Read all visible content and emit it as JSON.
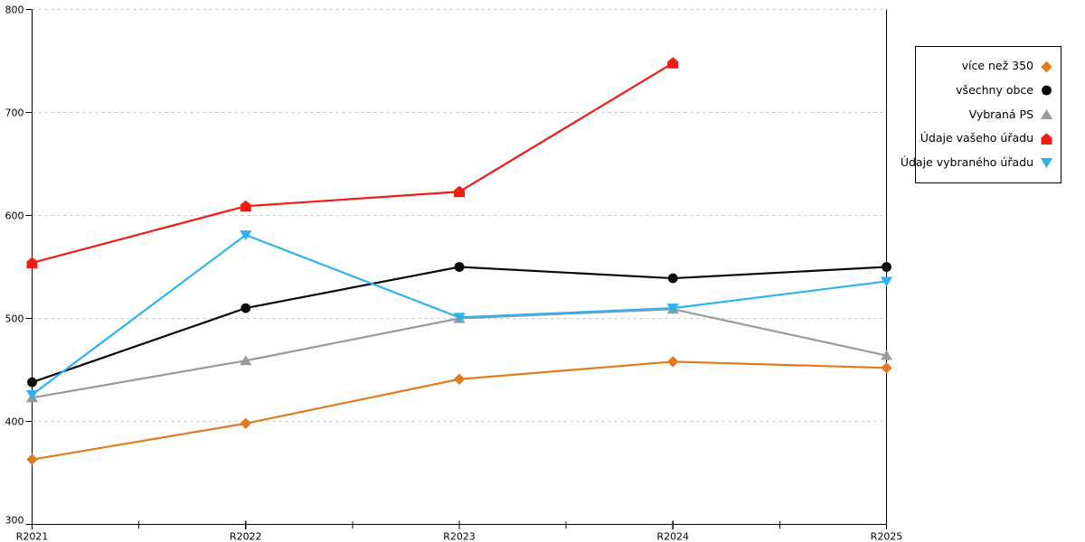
{
  "chart_data": {
    "type": "line",
    "title": "",
    "xlabel": "",
    "ylabel": "",
    "categories": [
      "R2021",
      "R2022",
      "R2023",
      "R2024",
      "R2025"
    ],
    "y_axis": {
      "min": 300,
      "max": 800,
      "tick_step": 100,
      "tick_labels": [
        "300",
        "400",
        "500",
        "600",
        "700",
        "800"
      ]
    },
    "grid": {
      "horizontal_dotted": true,
      "color": "#c4c4c4"
    },
    "axis_color": "#000000",
    "legend_position": "outside-top-right",
    "series": [
      {
        "name": "více než 350",
        "color": "#e07c1f",
        "marker": "diamond",
        "values": [
          363,
          398,
          441,
          458,
          452
        ]
      },
      {
        "name": "všechny obce",
        "color": "#0a0a0a",
        "marker": "circle",
        "values": [
          438,
          510,
          550,
          539,
          550
        ]
      },
      {
        "name": "Vybraná PS",
        "color": "#9a9a9a",
        "marker": "triangle-up",
        "values": [
          423,
          459,
          500,
          509,
          464
        ]
      },
      {
        "name": "Údaje vašeho úřadu",
        "color": "#f01c14",
        "marker": "pentagon",
        "values": [
          554,
          609,
          623,
          748,
          null
        ]
      },
      {
        "name": "Údaje vybraného úřadu",
        "color": "#2db2ef",
        "marker": "triangle-down",
        "values": [
          426,
          581,
          501,
          510,
          536
        ]
      }
    ]
  }
}
